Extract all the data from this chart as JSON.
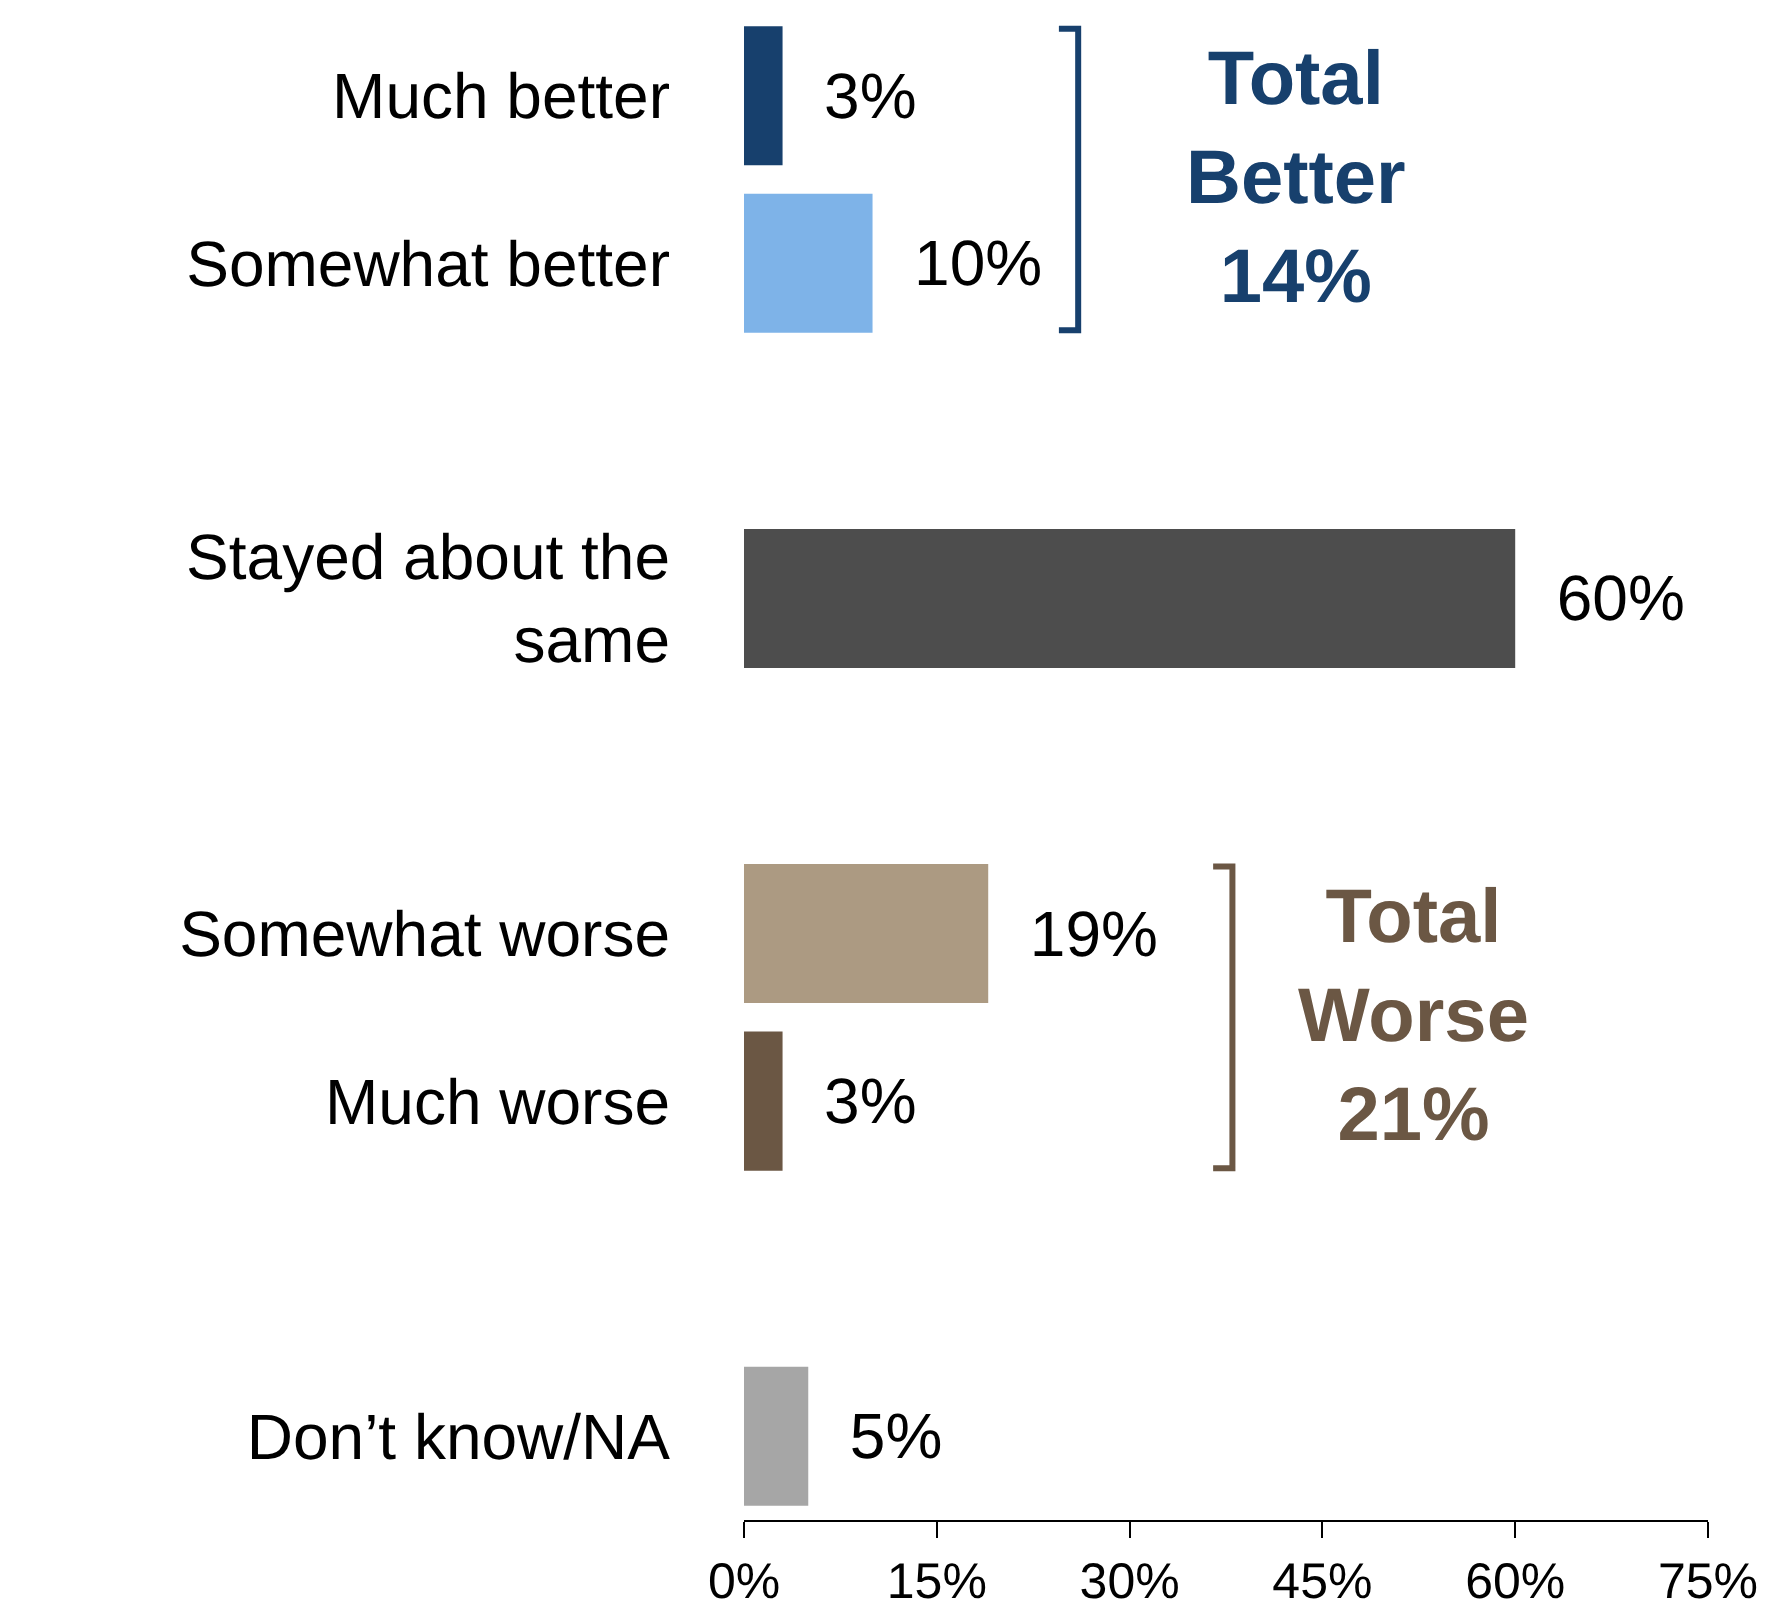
{
  "chart_data": {
    "type": "bar",
    "orientation": "horizontal",
    "categories": [
      "Much better",
      "Somewhat better",
      null,
      "Stayed about the same",
      null,
      "Somewhat worse",
      "Much worse",
      null,
      "Don’t know/NA"
    ],
    "values": [
      3,
      10,
      null,
      60,
      null,
      19,
      3,
      null,
      5
    ],
    "colors": [
      "#17406d",
      "#7eb3e8",
      "#ffffff",
      "#4d4d4d",
      "#ffffff",
      "#ac9a82",
      "#6b5744",
      "#ffffff",
      "#a6a6a6"
    ],
    "value_labels": [
      "3%",
      "10%",
      null,
      "60%",
      null,
      "19%",
      "3%",
      null,
      "5%"
    ],
    "xlim": [
      0,
      75
    ],
    "xticks": [
      {
        "value": 0,
        "label": "0%"
      },
      {
        "value": 15,
        "label": "15%"
      },
      {
        "value": 30,
        "label": "30%"
      },
      {
        "value": 45,
        "label": "45%"
      },
      {
        "value": 60,
        "label": "60%"
      },
      {
        "value": 75,
        "label": "75%"
      }
    ],
    "annotations": [
      "Total\nBetter\n14%",
      "Total\nWorse\n21%"
    ],
    "legend": false
  }
}
